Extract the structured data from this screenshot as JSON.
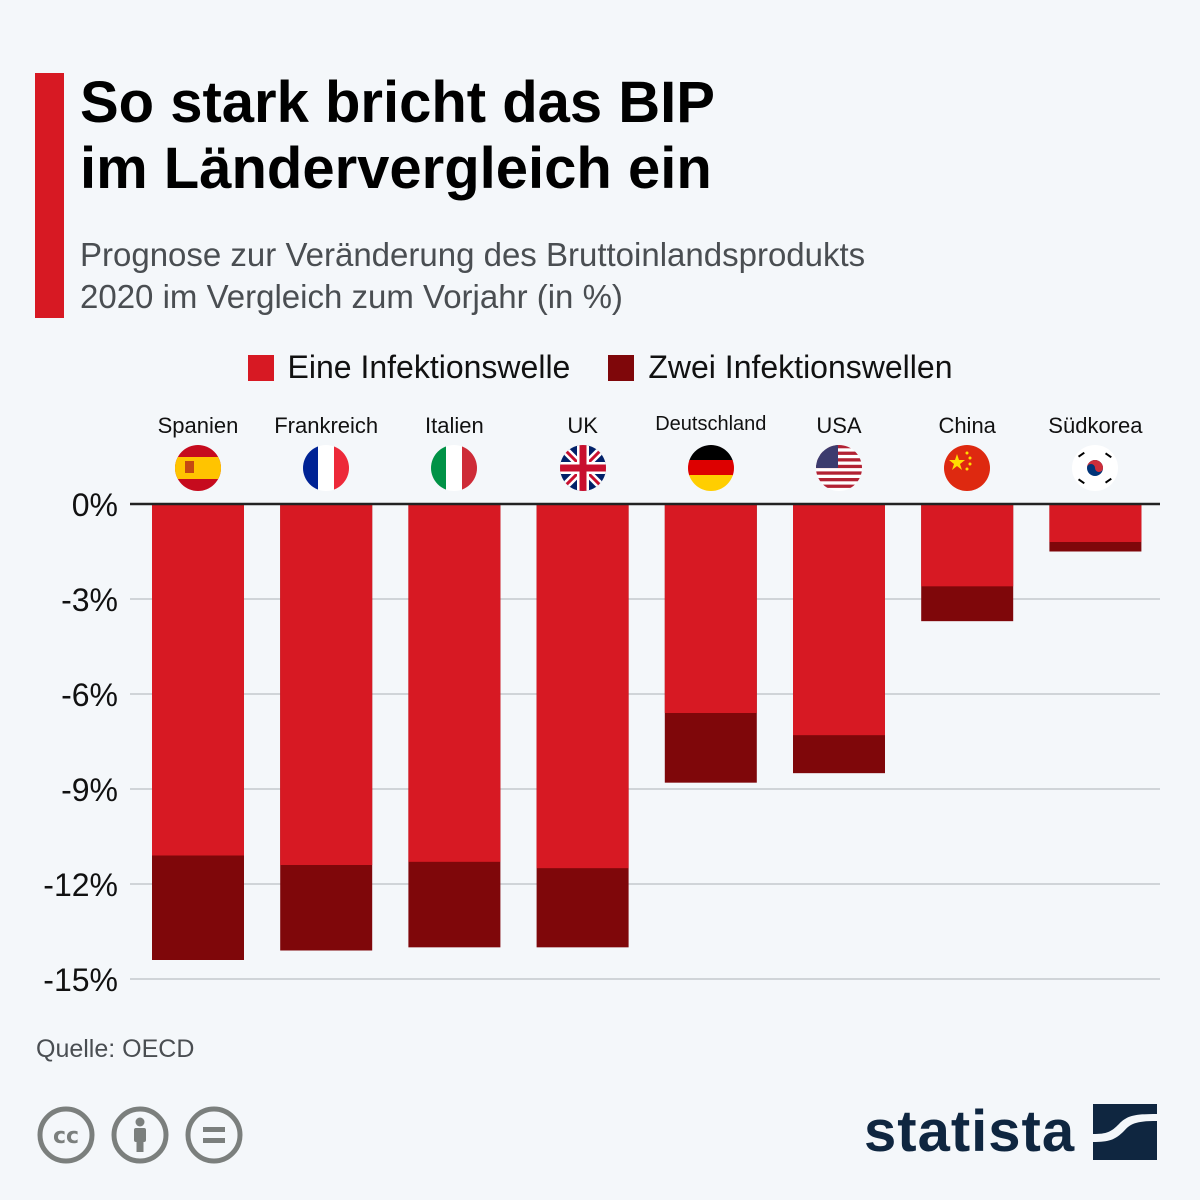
{
  "header": {
    "title_line1": "So stark bricht das BIP",
    "title_line2": "im Ländervergleich ein",
    "subtitle_line1": "Prognose zur Veränderung des Bruttoinlandsprodukts",
    "subtitle_line2": "2020 im Vergleich zum Vorjahr (in %)"
  },
  "colors": {
    "accent": "#d71923",
    "one_wave": "#d71923",
    "two_waves": "#7f070a",
    "brand": "#0f2640"
  },
  "chart_data": {
    "type": "bar",
    "stacked": true,
    "title": "So stark bricht das BIP im Ländervergleich ein",
    "subtitle": "Prognose zur Veränderung des Bruttoinlandsprodukts 2020 im Vergleich zum Vorjahr (in %)",
    "categories": [
      "Spanien",
      "Frankreich",
      "Italien",
      "UK",
      "Deutschland",
      "USA",
      "China",
      "Südkorea"
    ],
    "flags": [
      "flag-spain-icon",
      "flag-france-icon",
      "flag-italy-icon",
      "flag-uk-icon",
      "flag-germany-icon",
      "flag-usa-icon",
      "flag-china-icon",
      "flag-south-korea-icon"
    ],
    "series": [
      {
        "name": "Eine Infektionswelle",
        "color": "#d71923",
        "values": [
          -11.1,
          -11.4,
          -11.3,
          -11.5,
          -6.6,
          -7.3,
          -2.6,
          -1.2
        ]
      },
      {
        "name": "Zwei Infektionswellen",
        "color": "#7f070a",
        "values": [
          -14.4,
          -14.1,
          -14.0,
          -14.0,
          -8.8,
          -8.5,
          -3.7,
          -1.5
        ]
      }
    ],
    "ylim": [
      -15,
      0
    ],
    "yticks": [
      0,
      -3,
      -6,
      -9,
      -12,
      -15
    ],
    "ytick_labels": [
      "0%",
      "-3%",
      "-6%",
      "-9%",
      "-12%",
      "-15%"
    ],
    "xlabel": "",
    "ylabel": "",
    "grid": true,
    "legend_position": "top-center"
  },
  "footer": {
    "source": "Quelle: OECD",
    "license_icons": [
      "cc-icon",
      "attribution-icon",
      "no-derivatives-icon"
    ],
    "brand": "statista"
  }
}
